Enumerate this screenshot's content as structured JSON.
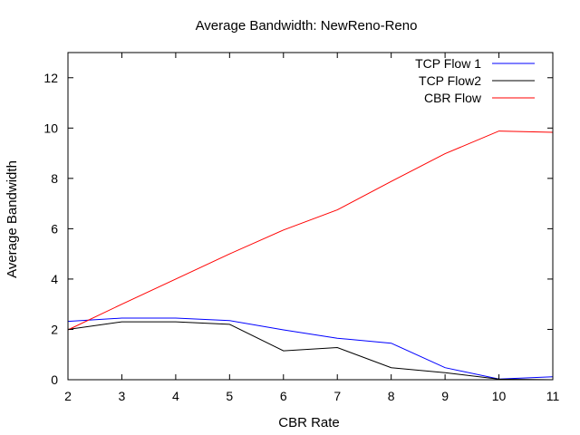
{
  "chart_data": {
    "type": "line",
    "title": "Average Bandwidth: NewReno-Reno",
    "xlabel": "CBR Rate",
    "ylabel": "Average Bandwidth",
    "xlim": [
      2,
      11
    ],
    "ylim": [
      0,
      13
    ],
    "xticks": [
      2,
      3,
      4,
      5,
      6,
      7,
      8,
      9,
      10,
      11
    ],
    "yticks": [
      0,
      2,
      4,
      6,
      8,
      10,
      12
    ],
    "grid": false,
    "legend_position": "top-right",
    "x": [
      2,
      3,
      4,
      5,
      6,
      7,
      8,
      9,
      10,
      11
    ],
    "series": [
      {
        "name": "TCP Flow 1",
        "color": "#0000ff",
        "values": [
          2.32,
          2.45,
          2.45,
          2.35,
          1.98,
          1.65,
          1.45,
          0.48,
          0.03,
          0.12
        ]
      },
      {
        "name": "TCP Flow2",
        "color": "#000000",
        "values": [
          2.0,
          2.3,
          2.3,
          2.2,
          1.15,
          1.28,
          0.48,
          0.28,
          0.02,
          0.0
        ]
      },
      {
        "name": "CBR Flow",
        "color": "#ff0000",
        "values": [
          1.98,
          3.0,
          4.0,
          5.0,
          5.95,
          6.75,
          7.88,
          8.98,
          9.88,
          9.83
        ]
      }
    ]
  }
}
